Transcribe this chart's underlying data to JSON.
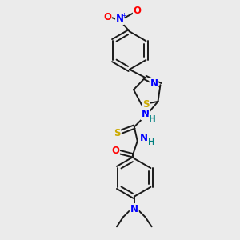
{
  "bg_color": "#ebebeb",
  "bond_color": "#1a1a1a",
  "atom_colors": {
    "N": "#0000ff",
    "O": "#ff0000",
    "S": "#ccaa00",
    "H_thiazole": "#008080",
    "H_amide": "#008080",
    "C": "#1a1a1a"
  },
  "lw": 1.4,
  "fs": 8.5
}
